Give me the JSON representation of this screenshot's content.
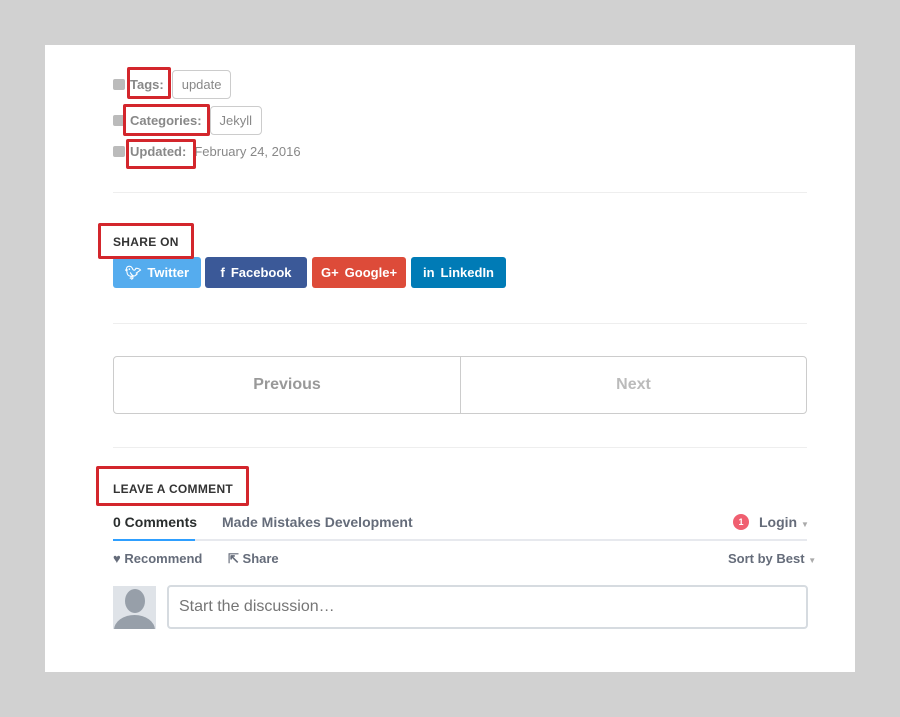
{
  "meta": {
    "tags_label": "Tags:",
    "tag": "update",
    "categories_label": "Categories:",
    "category": "Jekyll",
    "updated_label": "Updated:",
    "updated_date": "February 24, 2016"
  },
  "share": {
    "title": "SHARE ON",
    "twitter": "Twitter",
    "facebook": "Facebook",
    "google": "Google+",
    "linkedin": "LinkedIn",
    "colors": {
      "twitter": "#55acee",
      "facebook": "#3b5998",
      "google": "#dd4b39",
      "linkedin": "#007bb6"
    }
  },
  "pagination": {
    "previous": "Previous",
    "next": "Next"
  },
  "comments": {
    "title": "LEAVE A COMMENT",
    "tab_count": "0 Comments",
    "tab_site": "Made Mistakes Development",
    "notifications": "1",
    "login": "Login",
    "recommend": "Recommend",
    "share": "Share",
    "sort": "Sort by Best",
    "placeholder": "Start the discussion…"
  },
  "annotation_color": "#d3262c"
}
